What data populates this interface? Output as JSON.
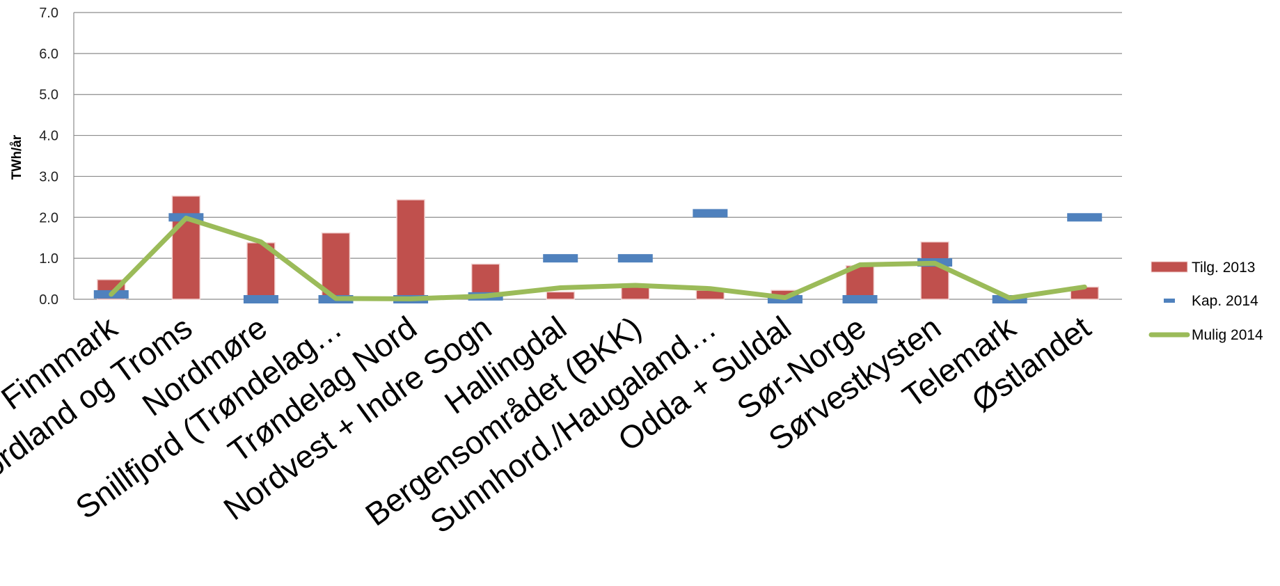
{
  "chart_data": {
    "type": "bar",
    "ylabel": "TWh/år",
    "ylim": [
      0,
      7
    ],
    "yticks": [
      "0.0",
      "1.0",
      "2.0",
      "3.0",
      "4.0",
      "5.0",
      "6.0",
      "7.0"
    ],
    "grid": true,
    "legend_position": "right",
    "categories": [
      "Finnmark",
      "Nordland og Troms",
      "Nordmøre",
      "Snillfjord (Trøndelag…",
      "Trøndelag Nord",
      "Nordvest + Indre Sogn",
      "Hallingdal",
      "Bergensområdet (BKK)",
      "Sunnhord./Haugaland…",
      "Odda + Suldal",
      "Sør-Norge",
      "Sørvestkysten",
      "Telemark",
      "Østlandet"
    ],
    "series": [
      {
        "name": "Tilg. 2013",
        "kind": "bar",
        "color": "#c0504d",
        "values": [
          0.48,
          2.52,
          1.38,
          1.62,
          2.43,
          0.86,
          0.18,
          0.3,
          0.22,
          0.22,
          0.82,
          1.4,
          0.05,
          0.3
        ]
      },
      {
        "name": "Kap. 2014",
        "kind": "marker",
        "color": "#4f81bd",
        "values": [
          0.12,
          2.0,
          0.0,
          0.0,
          0.0,
          0.07,
          1.0,
          1.0,
          2.1,
          0.0,
          0.0,
          0.9,
          0.0,
          2.0
        ]
      },
      {
        "name": "Mulig 2014",
        "kind": "line",
        "color": "#9bbb59",
        "values": [
          0.12,
          1.98,
          1.4,
          0.02,
          0.01,
          0.08,
          0.28,
          0.34,
          0.26,
          0.04,
          0.84,
          0.88,
          0.03,
          0.3
        ]
      }
    ]
  }
}
